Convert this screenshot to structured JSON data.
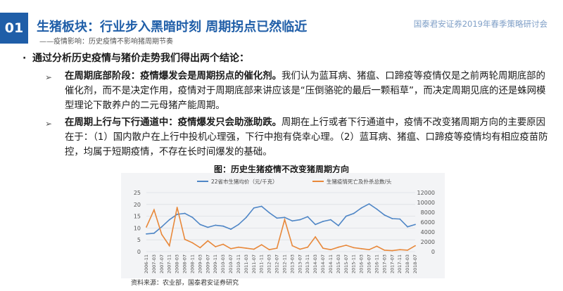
{
  "header": {
    "section_number": "01",
    "title": "生猪板块：行业步入黑暗时刻 周期拐点已然临近",
    "right_text": "国泰君安证券2019年春季策略研讨会",
    "subtitle": "——疫情影响：历史疫情不影响猪周期节奏"
  },
  "conclusion": "通过分析历史疫情与猪价走势我们得出两个结论：",
  "points": [
    {
      "bold": "在周期底部阶段：疫情爆发会是周期拐点的催化剂。",
      "text": "我们认为蓝耳病、猪瘟、口蹄疫等疫情仅是之前两轮周期底部的催化剂，而不是决定作用，疫情对于周期底部来讲应该是“压倒骆驼的最后一颗稻草”，而决定周期见底的还是蛛网模型理论下散养户的二元母猪产能周期。"
    },
    {
      "bold": "在周期上行与下行通道中：疫情爆发只会助涨助跌。",
      "text": "周期在上行或者下行通道中，疫情不改变猪周期方向的主要原因在于：（1）国内散户在上行中投机心理强，下行中抱有侥幸心理。（2）蓝耳病、猪瘟、口蹄疫等疫情均有相应疫苗防控，均属于短期疫情，不存在长时间爆发的基础。"
    }
  ],
  "chart_data": {
    "type": "line",
    "title": "图：历史生猪疫情不改变猪周期方向",
    "source": "资料来源：农业部，国泰君安证券研究",
    "x": [
      "2006-11",
      "2007-03",
      "2007-07",
      "2007-11",
      "2008-03",
      "2008-07",
      "2008-11",
      "2009-03",
      "2009-07",
      "2009-11",
      "2010-03",
      "2010-07",
      "2010-11",
      "2011-03",
      "2011-07",
      "2011-11",
      "2012-03",
      "2012-07",
      "2012-11",
      "2013-03",
      "2013-07",
      "2013-11",
      "2014-03",
      "2014-07",
      "2014-11",
      "2015-03",
      "2015-07",
      "2015-11",
      "2016-03",
      "2016-07",
      "2016-11",
      "2017-03",
      "2017-07",
      "2017-11",
      "2018-03",
      "2018-07"
    ],
    "ylim_left": [
      0,
      25
    ],
    "yticks_left": [
      0,
      5,
      10,
      15,
      20,
      25
    ],
    "ylim_right": [
      0,
      12000
    ],
    "yticks_right": [
      0,
      2000,
      4000,
      6000,
      8000,
      10000,
      12000
    ],
    "grid": true,
    "legend_position": "top",
    "series": [
      {
        "name": "22省市生猪均价（元/千克）",
        "axis": "left",
        "color": "#4f86c6",
        "values": [
          7.5,
          7.8,
          10.5,
          13.5,
          15.8,
          16.2,
          14.5,
          11.5,
          10.3,
          11.2,
          10.8,
          9.5,
          11.5,
          14.5,
          18.5,
          19.2,
          16.5,
          14.2,
          14.5,
          13.0,
          13.5,
          14.8,
          11.5,
          12.8,
          13.5,
          11.0,
          15.0,
          16.2,
          18.5,
          20.2,
          18.0,
          15.5,
          14.0,
          13.8,
          10.5,
          11.5
        ]
      },
      {
        "name": "生猪疫情死亡及扑杀总数/头",
        "axis": "right",
        "color": "#e8883a",
        "values": [
          5000,
          8500,
          3500,
          1200,
          9000,
          2500,
          1800,
          800,
          2200,
          1000,
          1500,
          600,
          900,
          700,
          500,
          1400,
          400,
          700,
          6500,
          1200,
          500,
          900,
          3000,
          700,
          400,
          900,
          1300,
          800,
          600,
          400,
          1100,
          300,
          200,
          400,
          300,
          1200
        ]
      }
    ]
  },
  "colors": {
    "brand": "#1f5ea8",
    "accent_light": "#7f9fc7",
    "chart_bg": "#f3f4f6"
  }
}
